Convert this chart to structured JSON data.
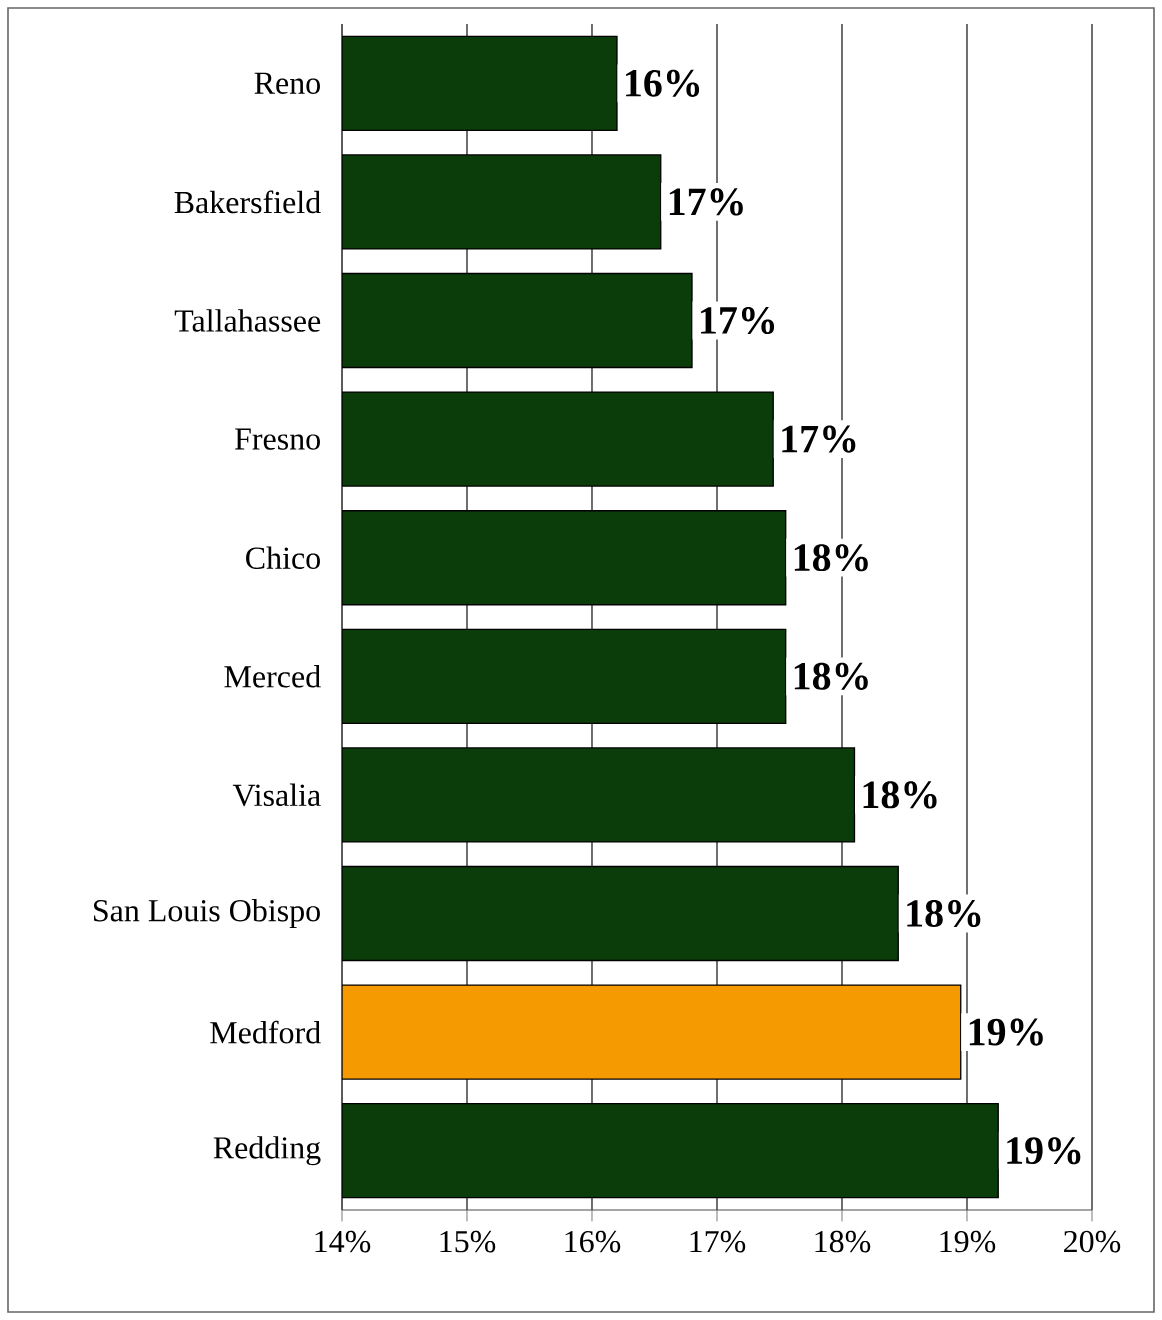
{
  "chart_data": {
    "type": "bar",
    "orientation": "horizontal",
    "categories": [
      "Reno",
      "Bakersfield",
      "Tallahassee",
      "Fresno",
      "Chico",
      "Merced",
      "Visalia",
      "San Louis Obispo",
      "Medford",
      "Redding"
    ],
    "values": [
      16.2,
      16.55,
      16.8,
      17.45,
      17.55,
      17.55,
      18.1,
      18.45,
      18.95,
      19.25
    ],
    "value_labels": [
      "16%",
      "17%",
      "17%",
      "17%",
      "18%",
      "18%",
      "18%",
      "18%",
      "19%",
      "19%"
    ],
    "colors": [
      "#0b3d0b",
      "#0b3d0b",
      "#0b3d0b",
      "#0b3d0b",
      "#0b3d0b",
      "#0b3d0b",
      "#0b3d0b",
      "#0b3d0b",
      "#f59a00",
      "#0b3d0b"
    ],
    "xlim": [
      14,
      20
    ],
    "xticks": [
      {
        "value": 14,
        "label": "14%"
      },
      {
        "value": 15,
        "label": "15%"
      },
      {
        "value": 16,
        "label": "16%"
      },
      {
        "value": 17,
        "label": "17%"
      },
      {
        "value": 18,
        "label": "18%"
      },
      {
        "value": 19,
        "label": "19%"
      },
      {
        "value": 20,
        "label": "20%"
      }
    ],
    "grid": "x"
  }
}
